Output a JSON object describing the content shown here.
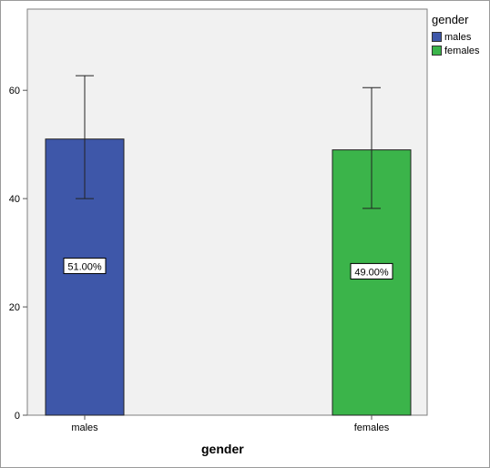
{
  "chart_data": {
    "type": "bar",
    "title": "",
    "xlabel": "gender",
    "ylabel": "",
    "categories": [
      "males",
      "females"
    ],
    "values": [
      51,
      49
    ],
    "value_labels": [
      "51.00%",
      "49.00%"
    ],
    "error_bars": [
      [
        40,
        62.7
      ],
      [
        38.2,
        60.5
      ]
    ],
    "ylim": [
      0,
      75
    ],
    "yticks": [
      0,
      20,
      40,
      60
    ],
    "colors": [
      "#3e57a9",
      "#3bb44a"
    ],
    "grid": false,
    "legend": {
      "title": "gender",
      "position": "top-right",
      "items": [
        "males",
        "females"
      ]
    }
  }
}
